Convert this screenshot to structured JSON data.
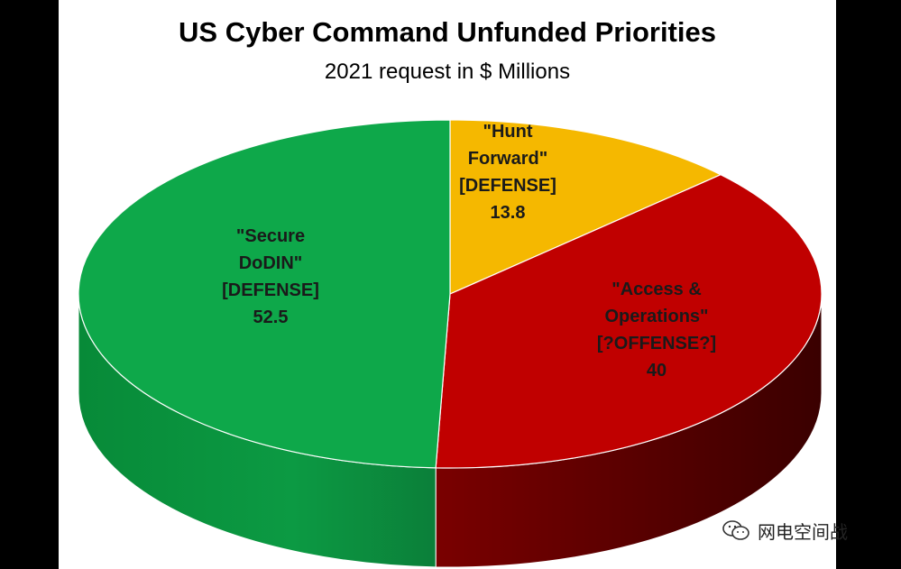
{
  "chart_data": {
    "type": "pie",
    "title": "US Cyber Command Unfunded Priorities",
    "subtitle": "2021 request in $ Millions",
    "slices": [
      {
        "lines": [
          "\"Hunt",
          "Forward\"",
          "[DEFENSE]",
          "13.8"
        ],
        "value": 13.8,
        "color": "#f5b800",
        "side_color": "#b08000"
      },
      {
        "lines": [
          "\"Access &",
          "Operations\"",
          "[?OFFENSE?]",
          "40"
        ],
        "value": 40,
        "color": "#c00000",
        "side_color": "#5a0000"
      },
      {
        "lines": [
          "\"Secure",
          "DoDIN\"",
          "[DEFENSE]",
          "52.5"
        ],
        "value": 52.5,
        "color": "#0ea84a",
        "side_color": "#0a7a36"
      }
    ]
  },
  "watermark": {
    "text": "网电空间战",
    "icon": "wechat-icon"
  }
}
